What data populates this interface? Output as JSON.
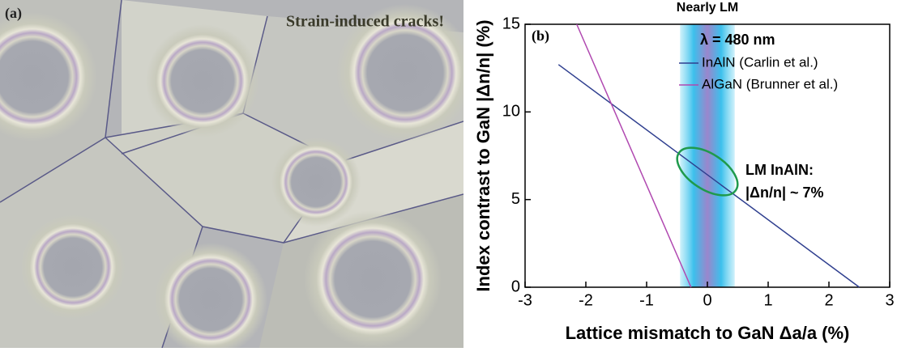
{
  "panel_a": {
    "label": "(a)",
    "caption": "Strain-induced cracks!"
  },
  "chart_data": {
    "type": "line",
    "panel_label": "(b)",
    "band_title": "Nearly LM",
    "subtitle": "λ = 480 nm",
    "x_label": "Lattice mismatch to GaN Δa/a (%)",
    "y_label": "Index contrast to GaN |Δn/n| (%)",
    "xlim": [
      -3,
      3
    ],
    "ylim": [
      0,
      15
    ],
    "xticks": [
      -3,
      -2,
      -1,
      0,
      1,
      2,
      3
    ],
    "yticks": [
      0,
      5,
      10,
      15
    ],
    "band": [
      -0.45,
      0.45
    ],
    "highlight": {
      "x": 0,
      "y": 6.6,
      "color": "#1f9a4c",
      "lines": [
        "LM InAlN:",
        "|Δn/n| ~ 7%"
      ]
    },
    "series": [
      {
        "name": "InAlN (Carlin et al.)",
        "color": "#2f3f8f",
        "x": [
          -2.45,
          2.5
        ],
        "values": [
          12.7,
          0
        ]
      },
      {
        "name": "AlGaN (Brunner et al.)",
        "color": "#b048b0",
        "x": [
          -2.15,
          -0.27
        ],
        "values": [
          15,
          0
        ]
      }
    ]
  }
}
